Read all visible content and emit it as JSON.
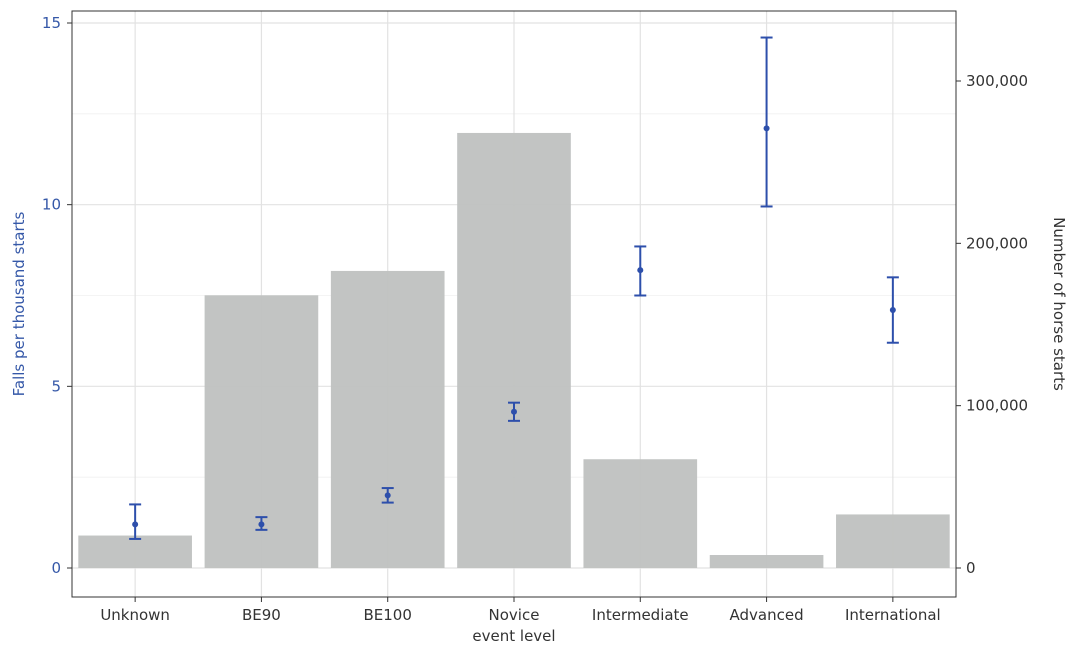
{
  "chart_data": {
    "type": "bar",
    "xlabel": "event level",
    "ylabel_left": "Falls per thousand starts",
    "ylabel_right": "Number of horse starts",
    "categories": [
      "Unknown",
      "BE90",
      "BE100",
      "Novice",
      "Intermediate",
      "Advanced",
      "International"
    ],
    "ylim_left": [
      0,
      15
    ],
    "yticks_left": [
      "0",
      "5",
      "10",
      "15"
    ],
    "ylim_right": [
      0,
      340000
    ],
    "yticks_right": [
      "0",
      "100,000",
      "200,000",
      "300,000"
    ],
    "grid": true,
    "series": [
      {
        "name": "Number of horse starts",
        "kind": "bar",
        "axis": "right",
        "color": "#bfc1c0",
        "values": [
          20000,
          168000,
          183000,
          268000,
          67000,
          8000,
          33000
        ]
      },
      {
        "name": "Falls per thousand starts",
        "kind": "pointrange",
        "axis": "left",
        "color": "#2d4fab",
        "values": [
          1.2,
          1.2,
          2.0,
          4.3,
          8.2,
          12.1,
          7.1
        ],
        "lower": [
          0.8,
          1.05,
          1.8,
          4.05,
          7.5,
          9.95,
          6.2
        ],
        "upper": [
          1.75,
          1.4,
          2.2,
          4.55,
          8.85,
          14.6,
          8.0
        ]
      }
    ]
  }
}
